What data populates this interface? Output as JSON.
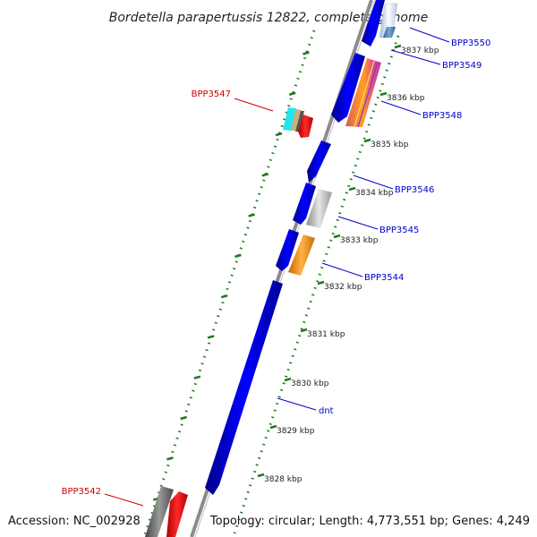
{
  "title": "Bordetella parapertussis 12822, complete genome",
  "accession": "Accession: NC_002928",
  "topology": "Topology: circular; Length: 4,773,551 bp; Genes: 4,249",
  "colors": {
    "backbone": "#808080",
    "tick": "#1e7a1e",
    "label_blue": "#0000cc",
    "label_red": "#cc0000",
    "gene_blue": "#0000ee"
  },
  "ticks": [
    {
      "label": "3837 kbp"
    },
    {
      "label": "3836 kbp"
    },
    {
      "label": "3835 kbp"
    },
    {
      "label": "3834 kbp"
    },
    {
      "label": "3833 kbp"
    },
    {
      "label": "3832 kbp"
    },
    {
      "label": "3831 kbp"
    },
    {
      "label": "3830 kbp"
    },
    {
      "label": "3829 kbp"
    },
    {
      "label": "3828 kbp"
    }
  ],
  "gene_labels": [
    {
      "text": "BPP3550",
      "color": "blue"
    },
    {
      "text": "BPP3549",
      "color": "blue"
    },
    {
      "text": "BPP3548",
      "color": "blue"
    },
    {
      "text": "BPP3547",
      "color": "red"
    },
    {
      "text": "BPP3546",
      "color": "blue"
    },
    {
      "text": "BPP3545",
      "color": "blue"
    },
    {
      "text": "BPP3544",
      "color": "blue"
    },
    {
      "text": "dnt",
      "color": "blue"
    },
    {
      "text": "BPP3542",
      "color": "red"
    }
  ]
}
